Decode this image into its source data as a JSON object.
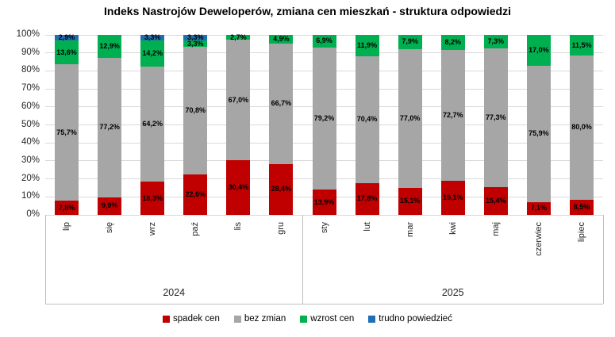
{
  "title": "Indeks Nastrojów Deweloperów, zmiana cen mieszkań - struktura odpowiedzi",
  "chart_data": {
    "type": "bar",
    "stacked": true,
    "percent_stack": true,
    "grid": true,
    "legend_position": "bottom",
    "ylim": [
      0,
      100
    ],
    "y_ticks": [
      "0%",
      "10%",
      "20%",
      "30%",
      "40%",
      "50%",
      "60%",
      "70%",
      "80%",
      "90%",
      "100%"
    ],
    "categories": [
      "lip",
      "się",
      "wrz",
      "paź",
      "lis",
      "gru",
      "sty",
      "lut",
      "mar",
      "kwi",
      "maj",
      "czerwiec",
      "lipiec"
    ],
    "groups": [
      {
        "label": "2024",
        "count": 6
      },
      {
        "label": "2025",
        "count": 7
      }
    ],
    "series": [
      {
        "name": "spadek cen",
        "color": "#C00000",
        "values": [
          7.8,
          9.9,
          18.3,
          22.6,
          30.4,
          28.4,
          13.9,
          17.8,
          15.1,
          19.1,
          15.4,
          7.1,
          8.5
        ],
        "labels": [
          "7,8%",
          "9,9%",
          "18,3%",
          "22,6%",
          "30,4%",
          "28,4%",
          "13,9%",
          "17,8%",
          "15,1%",
          "19,1%",
          "15,4%",
          "7,1%",
          "8,5%"
        ]
      },
      {
        "name": "bez zmian",
        "color": "#A6A6A6",
        "values": [
          75.7,
          77.2,
          64.2,
          70.8,
          67.0,
          66.7,
          79.2,
          70.4,
          77.0,
          72.7,
          77.3,
          75.9,
          80.0
        ],
        "labels": [
          "75,7%",
          "77,2%",
          "64,2%",
          "70,8%",
          "67,0%",
          "66,7%",
          "79,2%",
          "70,4%",
          "77,0%",
          "72,7%",
          "77,3%",
          "75,9%",
          "80,0%"
        ]
      },
      {
        "name": "wzrost cen",
        "color": "#00B050",
        "values": [
          13.6,
          12.9,
          14.2,
          3.3,
          2.7,
          4.9,
          6.9,
          11.9,
          7.9,
          8.2,
          7.3,
          17.0,
          11.5
        ],
        "labels": [
          "13,6%",
          "12,9%",
          "14,2%",
          "3,3%",
          "2,7%",
          "4,9%",
          "6,9%",
          "11,9%",
          "7,9%",
          "8,2%",
          "7,3%",
          "17,0%",
          "11,5%"
        ]
      },
      {
        "name": "trudno powiedzieć",
        "color": "#1F6FB5",
        "values": [
          2.9,
          0,
          3.3,
          3.3,
          0,
          0,
          0,
          0,
          0,
          0,
          0,
          0,
          0
        ],
        "labels": [
          "2,9%",
          null,
          "3,3%",
          "3,3%",
          null,
          null,
          null,
          null,
          null,
          null,
          null,
          null,
          null
        ]
      }
    ]
  },
  "legend": {
    "items": [
      {
        "label": "spadek cen",
        "color": "#C00000"
      },
      {
        "label": "bez zmian",
        "color": "#A6A6A6"
      },
      {
        "label": "wzrost cen",
        "color": "#00B050"
      },
      {
        "label": "trudno powiedzieć",
        "color": "#1F6FB5"
      }
    ]
  }
}
